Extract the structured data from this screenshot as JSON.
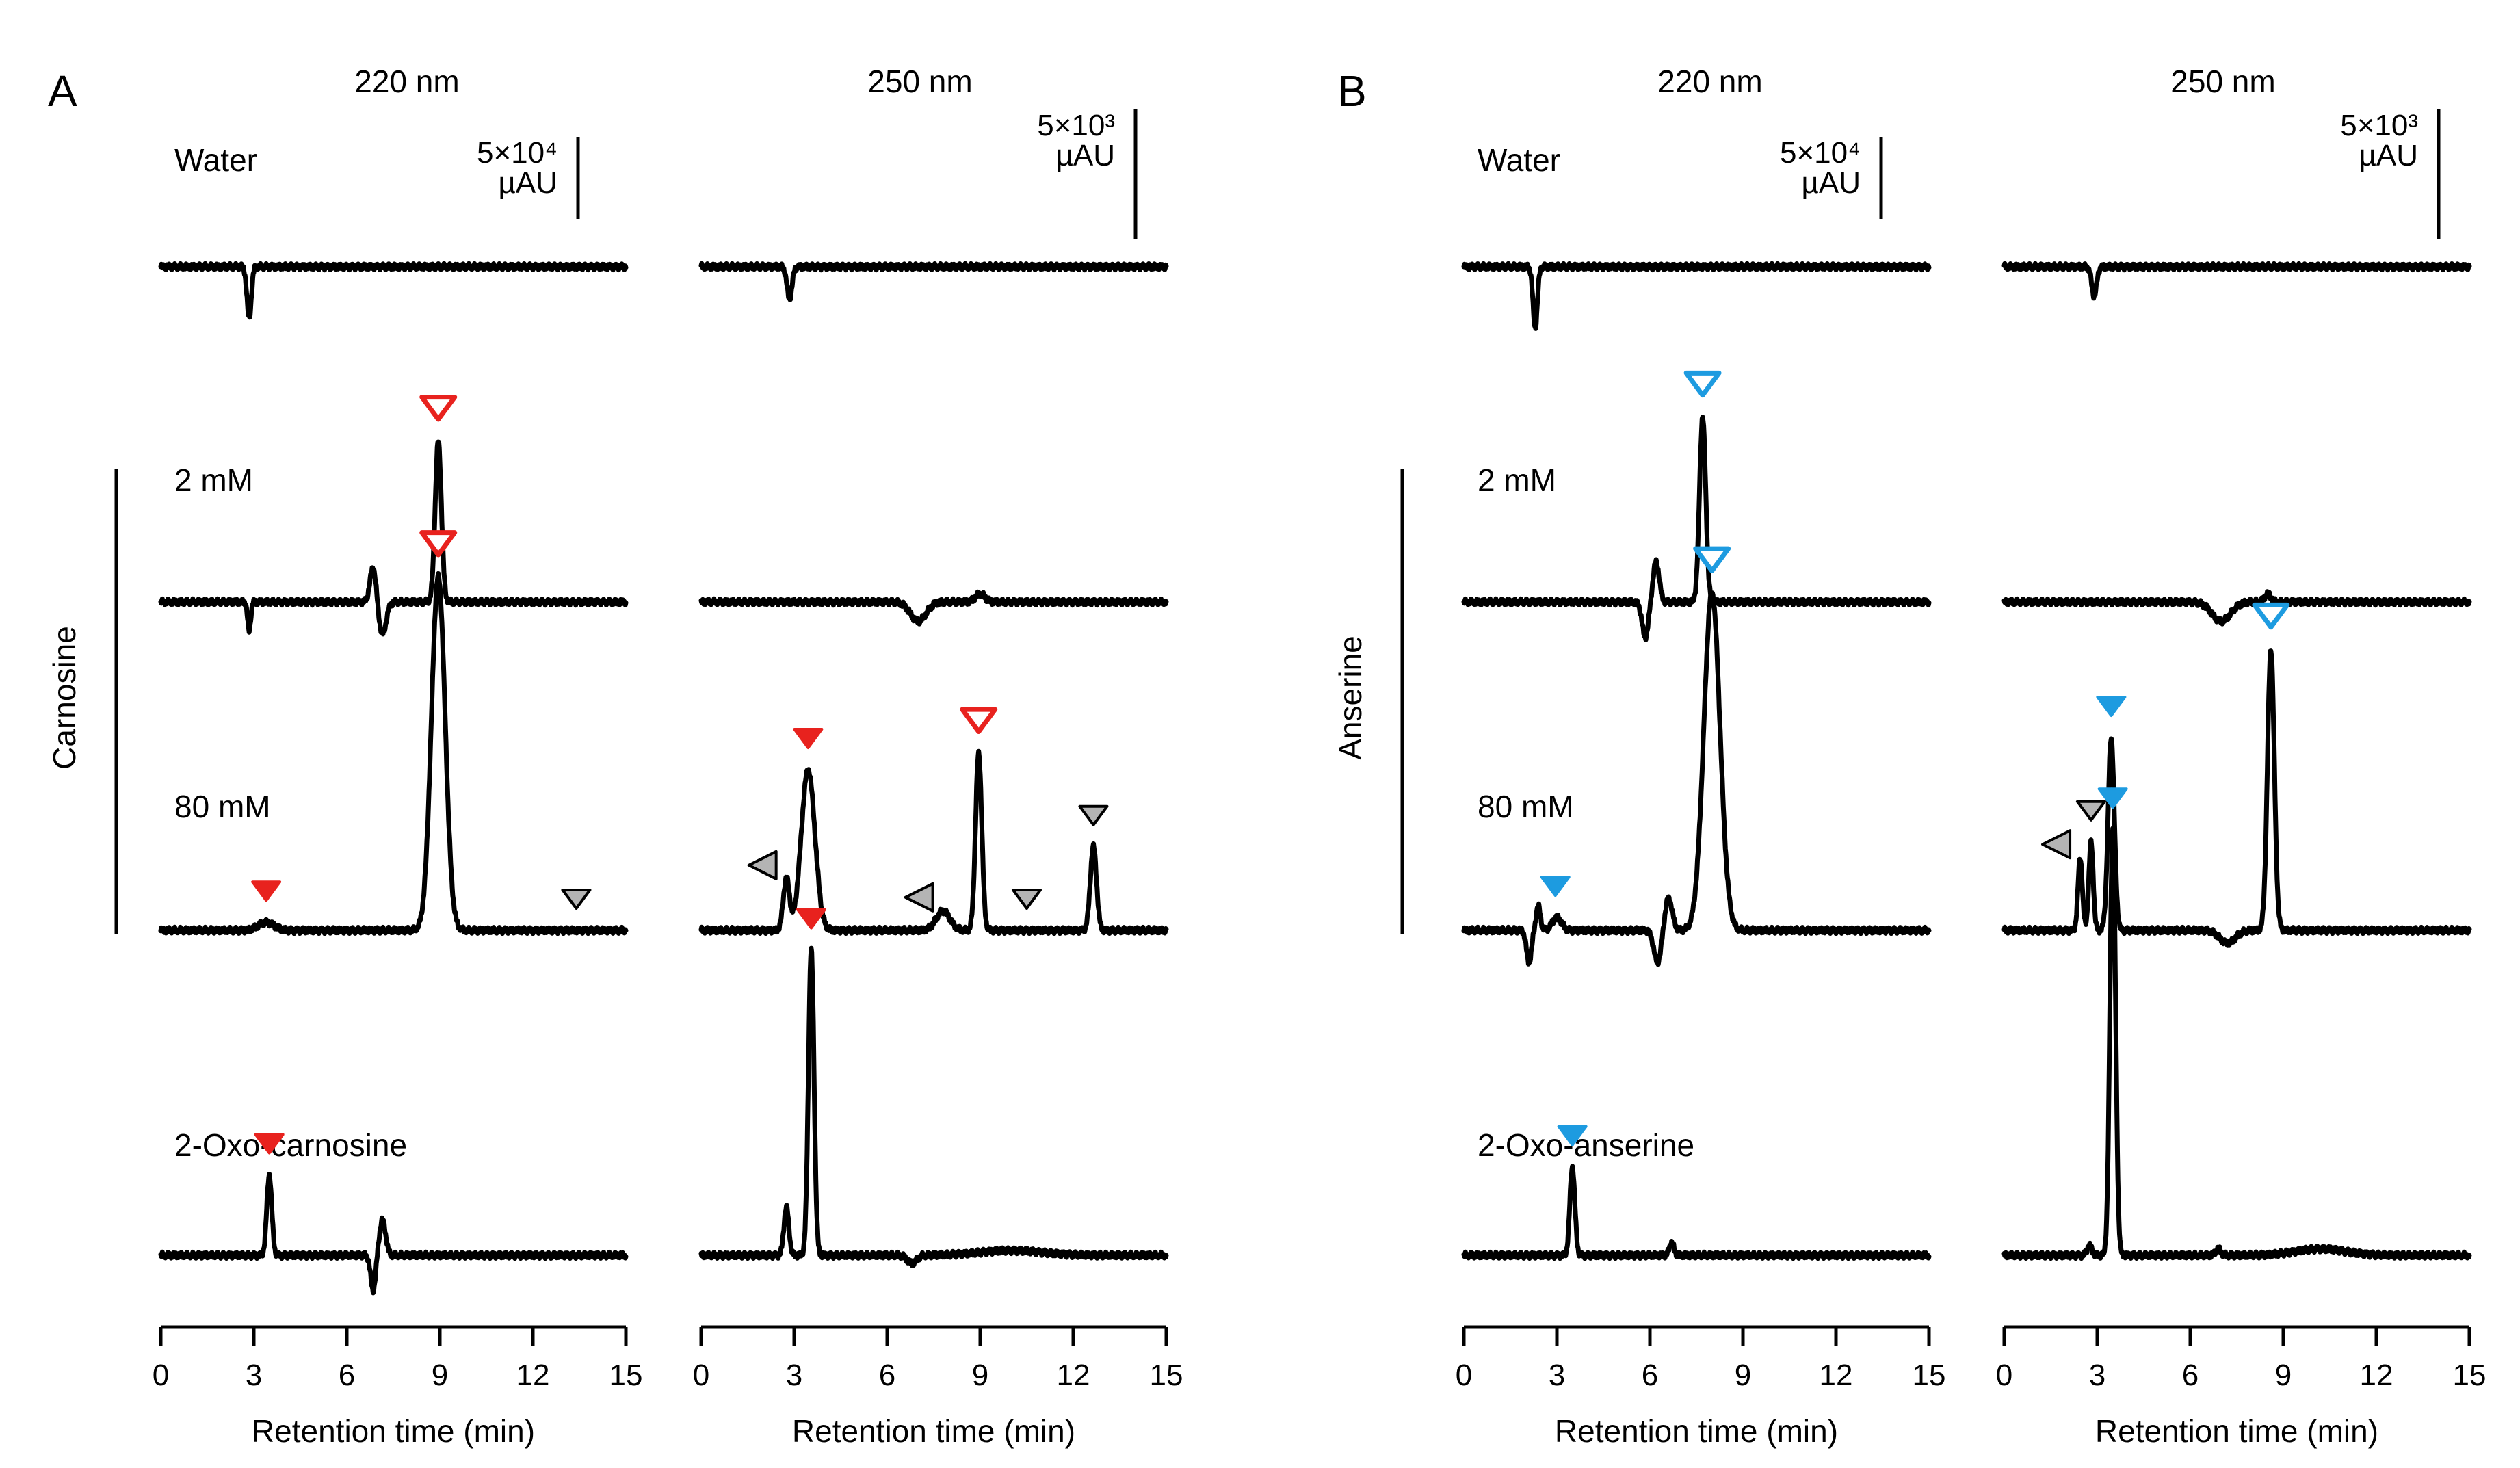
{
  "chart_data": {
    "type": "line",
    "figure": "HPLC chromatograms of carnosine and anserine",
    "panels": [
      {
        "id": "A",
        "letter": "A",
        "compound": "Carnosine",
        "standard": "2-Oxo-carnosine",
        "accent": "#e8221e",
        "columns": [
          {
            "wavelength": "220 nm",
            "scale_label": [
              "5×10⁴",
              "µAU"
            ],
            "scale_value": 50000
          },
          {
            "wavelength": "250 nm",
            "scale_label": [
              "5×10³",
              "µAU"
            ],
            "scale_value": 5000
          }
        ],
        "row_labels": [
          "Water",
          "2 mM",
          "80 mM",
          "2-Oxo-carnosine"
        ],
        "xlabel": "Retention time (min)",
        "xlim": [
          0,
          15
        ],
        "xticks": [
          0,
          3,
          6,
          9,
          12,
          15
        ],
        "traces": [
          {
            "row": 0,
            "col": 0,
            "label": "Water",
            "peaks": [
              {
                "t": 2.85,
                "h": -0.32,
                "w": 0.07
              }
            ],
            "markers": []
          },
          {
            "row": 0,
            "col": 1,
            "label": "Water",
            "peaks": [
              {
                "t": 2.85,
                "h": -0.2,
                "w": 0.08
              }
            ],
            "markers": []
          },
          {
            "row": 1,
            "col": 0,
            "label": "2 mM",
            "peaks": [
              {
                "t": 2.85,
                "h": -0.18,
                "w": 0.05
              },
              {
                "t": 6.85,
                "h": 0.22,
                "w": 0.1
              },
              {
                "t": 7.15,
                "h": -0.2,
                "w": 0.12
              },
              {
                "t": 8.95,
                "h": 1.0,
                "w": 0.1
              }
            ],
            "markers": [
              {
                "t": 8.95,
                "style": "open",
                "peak_height": 1.0
              }
            ]
          },
          {
            "row": 1,
            "col": 1,
            "label": "2 mM",
            "peaks": [
              {
                "t": 7.0,
                "h": -0.12,
                "w": 0.25
              },
              {
                "t": 9.0,
                "h": 0.05,
                "w": 0.15
              }
            ],
            "markers": []
          },
          {
            "row": 2,
            "col": 0,
            "label": "80 mM",
            "peaks": [
              {
                "t": 3.4,
                "h": 0.05,
                "w": 0.25
              },
              {
                "t": 8.95,
                "h": 2.2,
                "w": 0.22
              }
            ],
            "markers": [
              {
                "t": 3.4,
                "style": "filled",
                "peak_height": 0.05
              },
              {
                "t": 8.95,
                "style": "open",
                "peak_height": 2.2
              },
              {
                "t": 13.4,
                "style": "gray-down",
                "peak_height": 0.0
              }
            ]
          },
          {
            "row": 2,
            "col": 1,
            "label": "80 mM",
            "peaks": [
              {
                "t": 2.75,
                "h": 0.32,
                "w": 0.1
              },
              {
                "t": 3.45,
                "h": 1.0,
                "w": 0.22
              },
              {
                "t": 7.8,
                "h": 0.12,
                "w": 0.22
              },
              {
                "t": 8.95,
                "h": 1.1,
                "w": 0.1
              },
              {
                "t": 12.65,
                "h": 0.52,
                "w": 0.1
              }
            ],
            "markers": [
              {
                "t": 2.75,
                "style": "gray-left",
                "peak_height": 0.32
              },
              {
                "t": 3.45,
                "style": "filled",
                "peak_height": 1.0
              },
              {
                "t": 7.8,
                "style": "gray-left",
                "peak_height": 0.12
              },
              {
                "t": 8.95,
                "style": "open",
                "peak_height": 1.1
              },
              {
                "t": 10.5,
                "style": "gray-down",
                "peak_height": 0.0
              },
              {
                "t": 12.65,
                "style": "gray-down",
                "peak_height": 0.52
              }
            ]
          },
          {
            "row": 3,
            "col": 0,
            "label": "2-Oxo-carnosine",
            "peaks": [
              {
                "t": 3.5,
                "h": 0.5,
                "w": 0.08
              },
              {
                "t": 6.85,
                "h": -0.22,
                "w": 0.08
              },
              {
                "t": 7.15,
                "h": 0.22,
                "w": 0.1
              }
            ],
            "markers": [
              {
                "t": 3.5,
                "style": "filled",
                "peak_height": 0.5
              }
            ]
          },
          {
            "row": 3,
            "col": 1,
            "label": "2-Oxo-carnosine",
            "peaks": [
              {
                "t": 2.75,
                "h": 0.3,
                "w": 0.08
              },
              {
                "t": 3.55,
                "h": 1.9,
                "w": 0.09
              },
              {
                "t": 6.8,
                "h": -0.05,
                "w": 0.15
              },
              {
                "t": 10.0,
                "h": 0.03,
                "w": 1.0
              }
            ],
            "markers": [
              {
                "t": 3.55,
                "style": "filled",
                "peak_height": 1.9
              }
            ]
          }
        ]
      },
      {
        "id": "B",
        "letter": "B",
        "compound": "Anserine",
        "standard": "2-Oxo-anserine",
        "accent": "#1d9be0",
        "columns": [
          {
            "wavelength": "220 nm",
            "scale_label": [
              "5×10⁴",
              "µAU"
            ],
            "scale_value": 50000
          },
          {
            "wavelength": "250 nm",
            "scale_label": [
              "5×10³",
              "µAU"
            ],
            "scale_value": 5000
          }
        ],
        "row_labels": [
          "Water",
          "2 mM",
          "80 mM",
          "2-Oxo-anserine"
        ],
        "xlabel": "Retention time (min)",
        "xlim": [
          0,
          15
        ],
        "xticks": [
          0,
          3,
          6,
          9,
          12,
          15
        ],
        "traces": [
          {
            "row": 0,
            "col": 0,
            "label": "Water",
            "peaks": [
              {
                "t": 2.3,
                "h": -0.38,
                "w": 0.07
              }
            ],
            "markers": []
          },
          {
            "row": 0,
            "col": 1,
            "label": "Water",
            "peaks": [
              {
                "t": 2.9,
                "h": -0.18,
                "w": 0.08
              }
            ],
            "markers": []
          },
          {
            "row": 1,
            "col": 0,
            "label": "2 mM",
            "peaks": [
              {
                "t": 5.85,
                "h": -0.22,
                "w": 0.1
              },
              {
                "t": 6.2,
                "h": 0.25,
                "w": 0.1
              },
              {
                "t": 7.7,
                "h": 1.15,
                "w": 0.1
              }
            ],
            "markers": [
              {
                "t": 7.7,
                "style": "open",
                "peak_height": 1.15
              }
            ]
          },
          {
            "row": 1,
            "col": 1,
            "label": "2 mM",
            "peaks": [
              {
                "t": 7.0,
                "h": -0.12,
                "w": 0.3
              },
              {
                "t": 8.5,
                "h": 0.05,
                "w": 0.1
              }
            ],
            "markers": []
          },
          {
            "row": 2,
            "col": 0,
            "label": "80 mM",
            "peaks": [
              {
                "t": 2.1,
                "h": -0.2,
                "w": 0.08
              },
              {
                "t": 2.4,
                "h": 0.15,
                "w": 0.07
              },
              {
                "t": 3.0,
                "h": 0.08,
                "w": 0.15
              },
              {
                "t": 6.25,
                "h": -0.2,
                "w": 0.12
              },
              {
                "t": 6.6,
                "h": 0.2,
                "w": 0.12
              },
              {
                "t": 8.0,
                "h": 2.1,
                "w": 0.26
              }
            ],
            "markers": [
              {
                "t": 2.95,
                "style": "filled",
                "peak_height": 0.08
              },
              {
                "t": 8.0,
                "style": "open",
                "peak_height": 2.1
              }
            ]
          },
          {
            "row": 2,
            "col": 1,
            "label": "80 mM",
            "peaks": [
              {
                "t": 2.45,
                "h": 0.45,
                "w": 0.07
              },
              {
                "t": 2.8,
                "h": 0.55,
                "w": 0.07
              },
              {
                "t": 3.45,
                "h": 1.2,
                "w": 0.1
              },
              {
                "t": 7.2,
                "h": -0.08,
                "w": 0.25
              },
              {
                "t": 8.6,
                "h": 1.75,
                "w": 0.11
              }
            ],
            "markers": [
              {
                "t": 2.45,
                "style": "gray-left",
                "peak_height": 0.45
              },
              {
                "t": 2.8,
                "style": "gray-down",
                "peak_height": 0.55
              },
              {
                "t": 3.45,
                "style": "filled",
                "peak_height": 1.2
              },
              {
                "t": 8.6,
                "style": "open",
                "peak_height": 1.75
              }
            ]
          },
          {
            "row": 3,
            "col": 0,
            "label": "2-Oxo-anserine",
            "peaks": [
              {
                "t": 3.5,
                "h": 0.55,
                "w": 0.08
              },
              {
                "t": 6.7,
                "h": 0.08,
                "w": 0.07
              }
            ],
            "markers": [
              {
                "t": 3.5,
                "style": "filled",
                "peak_height": 0.55
              }
            ]
          },
          {
            "row": 3,
            "col": 1,
            "label": "2-Oxo-anserine",
            "peaks": [
              {
                "t": 2.75,
                "h": 0.06,
                "w": 0.08
              },
              {
                "t": 3.5,
                "h": 2.65,
                "w": 0.09
              },
              {
                "t": 6.9,
                "h": 0.04,
                "w": 0.08
              },
              {
                "t": 10.2,
                "h": 0.04,
                "w": 0.8
              }
            ],
            "markers": [
              {
                "t": 3.5,
                "style": "filled",
                "peak_height": 2.65
              }
            ]
          }
        ]
      }
    ]
  }
}
